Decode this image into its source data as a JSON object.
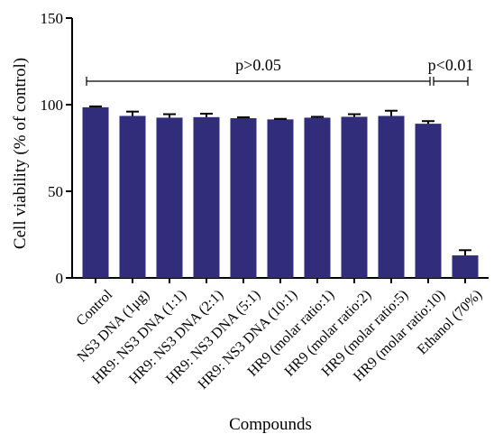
{
  "chart_data": {
    "type": "bar",
    "ylabel": "Cell viability (% of control)",
    "xlabel": "Compounds",
    "ylim": [
      0,
      150
    ],
    "yticks": [
      0,
      50,
      100,
      150
    ],
    "grid": false,
    "bar_color": "#312d7a",
    "categories": [
      "Control",
      "NS3 DNA (1μg)",
      "HR9: NS3 DNA (1:1)",
      "HR9: NS3 DNA (2:1)",
      "HR9: NS3 DNA (5:1)",
      "HR9: NS3 DNA (10:1)",
      "HR9 (molar ratio:1)",
      "HR9 (molar ratio:2)",
      "HR9 (molar ratio:5)",
      "HR9 (molar ratio:10)",
      "Ethanol (70%)"
    ],
    "values": [
      98.5,
      93.5,
      92.5,
      92.8,
      92.2,
      91.5,
      92.5,
      93,
      93.5,
      89,
      13
    ],
    "errors": [
      0.5,
      2.5,
      2,
      2,
      0.5,
      0.3,
      0.5,
      1.5,
      3,
      1.5,
      3
    ],
    "annotations": [
      {
        "text": "p>0.05",
        "from": "Control",
        "to": "HR9 (molar ratio:10)"
      },
      {
        "text": "p<0.01",
        "from": "HR9 (molar ratio:10)",
        "to": "Ethanol (70%)"
      }
    ]
  }
}
